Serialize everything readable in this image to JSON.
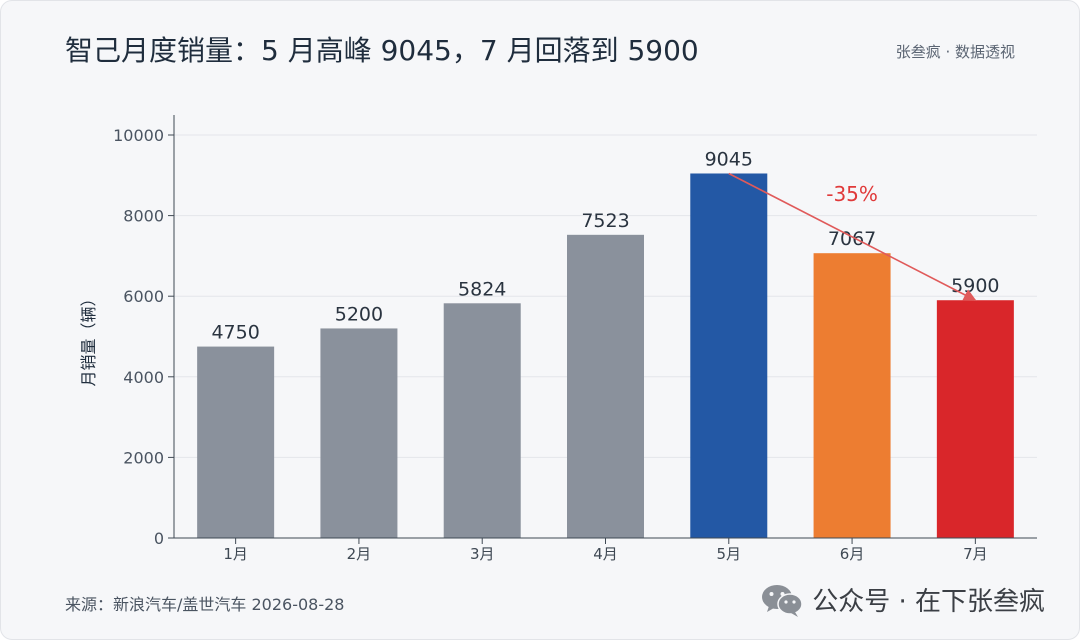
{
  "header": {
    "title": "智己月度销量：5 月高峰 9045，7 月回落到 5900",
    "brand": "张叁疯 · 数据透视"
  },
  "footer": {
    "source": "来源：新浪汽车/盖世汽车 2026-08-28",
    "watermark": "公众号 · 在下张叁疯",
    "watermark_icon": "wechat-icon"
  },
  "chart_data": {
    "type": "bar",
    "categories": [
      "1月",
      "2月",
      "3月",
      "4月",
      "5月",
      "6月",
      "7月"
    ],
    "values": [
      4750,
      5200,
      5824,
      7523,
      9045,
      7067,
      5900
    ],
    "colors": [
      "#8a919c",
      "#8a919c",
      "#8a919c",
      "#8a919c",
      "#2358a5",
      "#ed7d31",
      "#d9262a"
    ],
    "title": "智己月度销量：5 月高峰 9045，7 月回落到 5900",
    "xlabel": "",
    "ylabel": "月销量（辆）",
    "ylim": [
      0,
      10000
    ],
    "yticks": [
      0,
      2000,
      4000,
      6000,
      8000,
      10000
    ],
    "grid": true,
    "annotation": {
      "text": "-35%",
      "from": "5月",
      "to": "7月",
      "color": "#e03a3a"
    }
  }
}
